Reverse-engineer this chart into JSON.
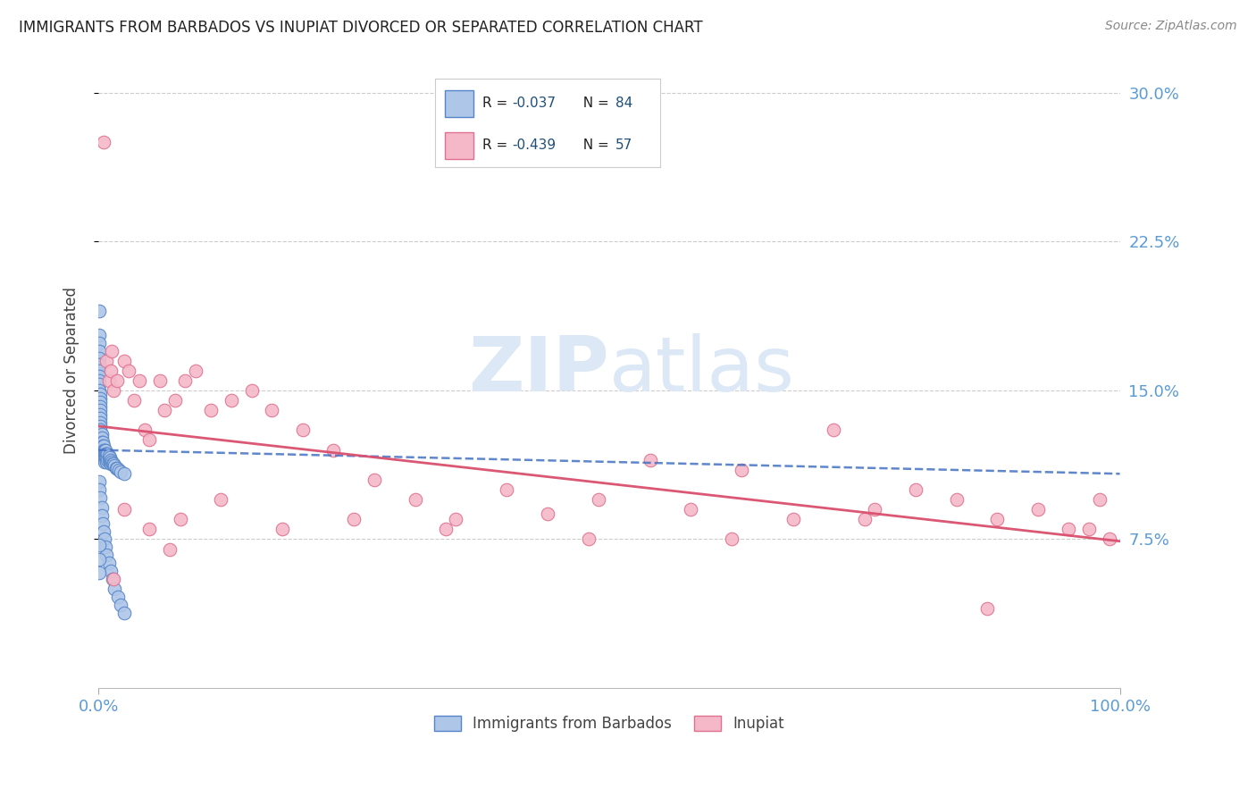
{
  "title": "IMMIGRANTS FROM BARBADOS VS INUPIAT DIVORCED OR SEPARATED CORRELATION CHART",
  "source_text": "Source: ZipAtlas.com",
  "ylabel": "Divorced or Separated",
  "xlim": [
    0.0,
    1.0
  ],
  "ylim": [
    0.0,
    0.32
  ],
  "yticks": [
    0.075,
    0.15,
    0.225,
    0.3
  ],
  "ytick_labels": [
    "7.5%",
    "15.0%",
    "22.5%",
    "30.0%"
  ],
  "xtick_labels": [
    "0.0%",
    "100.0%"
  ],
  "series1_color": "#aec6e8",
  "series1_edge": "#5585c8",
  "series2_color": "#f4b8c8",
  "series2_edge": "#e07090",
  "trend1_color": "#4472c4",
  "trend2_color": "#d94f6e",
  "grid_color": "#cccccc",
  "background_color": "#ffffff",
  "title_color": "#222222",
  "axis_label_color": "#444444",
  "tick_label_color": "#5b9bd5",
  "watermark_color": "#dce8f5",
  "legend_text_color": "#1f4e79",
  "blue_points_x": [
    0.001,
    0.001,
    0.001,
    0.001,
    0.001,
    0.001,
    0.001,
    0.001,
    0.001,
    0.001,
    0.001,
    0.002,
    0.002,
    0.002,
    0.002,
    0.002,
    0.002,
    0.002,
    0.002,
    0.002,
    0.002,
    0.003,
    0.003,
    0.003,
    0.003,
    0.003,
    0.003,
    0.003,
    0.004,
    0.004,
    0.004,
    0.004,
    0.004,
    0.005,
    0.005,
    0.005,
    0.005,
    0.006,
    0.006,
    0.006,
    0.006,
    0.007,
    0.007,
    0.007,
    0.008,
    0.008,
    0.008,
    0.009,
    0.009,
    0.01,
    0.01,
    0.011,
    0.011,
    0.012,
    0.012,
    0.013,
    0.014,
    0.015,
    0.016,
    0.017,
    0.018,
    0.02,
    0.022,
    0.025,
    0.001,
    0.001,
    0.002,
    0.003,
    0.003,
    0.004,
    0.005,
    0.006,
    0.007,
    0.008,
    0.01,
    0.012,
    0.014,
    0.016,
    0.019,
    0.022,
    0.025,
    0.001,
    0.001,
    0.001
  ],
  "blue_points_y": [
    0.19,
    0.178,
    0.174,
    0.17,
    0.166,
    0.163,
    0.16,
    0.157,
    0.155,
    0.153,
    0.15,
    0.148,
    0.146,
    0.144,
    0.142,
    0.14,
    0.138,
    0.136,
    0.134,
    0.132,
    0.13,
    0.128,
    0.126,
    0.124,
    0.122,
    0.12,
    0.118,
    0.116,
    0.124,
    0.122,
    0.12,
    0.118,
    0.116,
    0.122,
    0.12,
    0.118,
    0.116,
    0.12,
    0.118,
    0.116,
    0.114,
    0.12,
    0.118,
    0.116,
    0.118,
    0.116,
    0.114,
    0.118,
    0.115,
    0.117,
    0.115,
    0.116,
    0.114,
    0.115,
    0.113,
    0.114,
    0.113,
    0.113,
    0.112,
    0.111,
    0.111,
    0.11,
    0.109,
    0.108,
    0.104,
    0.1,
    0.096,
    0.091,
    0.087,
    0.083,
    0.079,
    0.075,
    0.071,
    0.067,
    0.063,
    0.059,
    0.055,
    0.05,
    0.046,
    0.042,
    0.038,
    0.072,
    0.065,
    0.058
  ],
  "pink_points_x": [
    0.005,
    0.008,
    0.01,
    0.012,
    0.013,
    0.015,
    0.018,
    0.025,
    0.03,
    0.035,
    0.04,
    0.045,
    0.05,
    0.06,
    0.065,
    0.075,
    0.085,
    0.095,
    0.11,
    0.13,
    0.15,
    0.17,
    0.2,
    0.23,
    0.27,
    0.31,
    0.35,
    0.4,
    0.44,
    0.49,
    0.54,
    0.58,
    0.63,
    0.68,
    0.72,
    0.76,
    0.8,
    0.84,
    0.88,
    0.92,
    0.95,
    0.97,
    0.98,
    0.99,
    0.025,
    0.05,
    0.08,
    0.015,
    0.07,
    0.12,
    0.18,
    0.25,
    0.34,
    0.48,
    0.62,
    0.75,
    0.87
  ],
  "pink_points_y": [
    0.275,
    0.165,
    0.155,
    0.16,
    0.17,
    0.15,
    0.155,
    0.165,
    0.16,
    0.145,
    0.155,
    0.13,
    0.125,
    0.155,
    0.14,
    0.145,
    0.155,
    0.16,
    0.14,
    0.145,
    0.15,
    0.14,
    0.13,
    0.12,
    0.105,
    0.095,
    0.085,
    0.1,
    0.088,
    0.095,
    0.115,
    0.09,
    0.11,
    0.085,
    0.13,
    0.09,
    0.1,
    0.095,
    0.085,
    0.09,
    0.08,
    0.08,
    0.095,
    0.075,
    0.09,
    0.08,
    0.085,
    0.055,
    0.07,
    0.095,
    0.08,
    0.085,
    0.08,
    0.075,
    0.075,
    0.085,
    0.04
  ],
  "blue_trend_x0": 0.0,
  "blue_trend_x1": 1.0,
  "blue_trend_y0": 0.12,
  "blue_trend_y1": 0.108,
  "pink_trend_x0": 0.0,
  "pink_trend_x1": 1.0,
  "pink_trend_y0": 0.132,
  "pink_trend_y1": 0.074
}
